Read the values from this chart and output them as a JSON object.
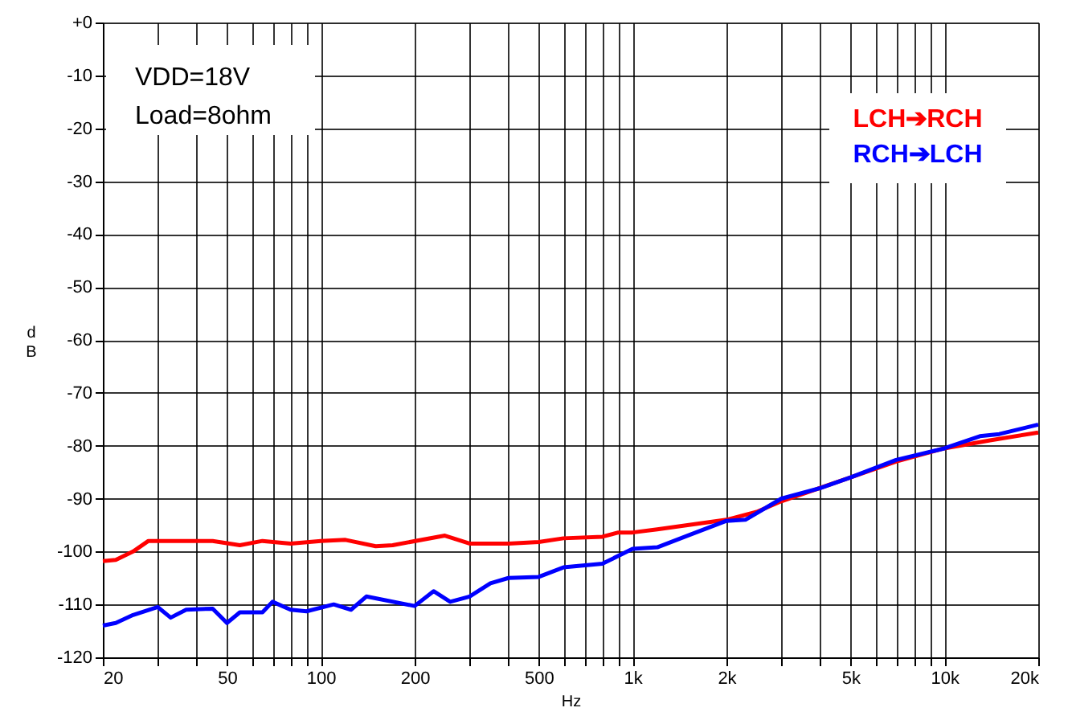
{
  "chart_data": {
    "type": "line",
    "xlabel": "Hz",
    "ylabel": "dB",
    "annotations": [
      "VDD=18V",
      "Load=8ohm"
    ],
    "log": "x",
    "grid": true,
    "legend": "top right",
    "line_style": "solid",
    "marker": "none",
    "xlim": [
      20,
      20000
    ],
    "xticks": [
      20,
      {
        "value": 30,
        "label": null
      },
      {
        "value": 40,
        "label": null
      },
      50,
      {
        "value": 60,
        "label": null
      },
      {
        "value": 70,
        "label": null
      },
      {
        "value": 80,
        "label": null
      },
      {
        "value": 90,
        "label": null
      },
      100,
      200,
      {
        "value": 300,
        "label": null
      },
      {
        "value": 400,
        "label": null
      },
      500,
      {
        "value": 600,
        "label": null
      },
      {
        "value": 700,
        "label": null
      },
      {
        "value": 800,
        "label": null
      },
      {
        "value": 900,
        "label": null
      },
      {
        "value": 1000,
        "label": "1k"
      },
      {
        "value": 2000,
        "label": "2k"
      },
      {
        "value": 3000,
        "label": null
      },
      {
        "value": 4000,
        "label": null
      },
      {
        "value": 5000,
        "label": "5k"
      },
      {
        "value": 6000,
        "label": null
      },
      {
        "value": 7000,
        "label": null
      },
      {
        "value": 8000,
        "label": null
      },
      {
        "value": 9000,
        "label": null
      },
      {
        "value": 10000,
        "label": "10k"
      },
      {
        "value": 20000,
        "label": "20k"
      }
    ],
    "ylim": [
      -120,
      0
    ],
    "yticks": [
      -120,
      -110,
      -100,
      -90,
      -80,
      -70,
      -60,
      -50,
      -40,
      -30,
      -20,
      -10,
      {
        "value": 0,
        "label": "+0"
      }
    ],
    "series": [
      {
        "name": "LCH➔RCH",
        "color": "#ff0000",
        "x": [
          20,
          22,
          25,
          28,
          35,
          45,
          55,
          65,
          80,
          100,
          120,
          150,
          170,
          250,
          300,
          400,
          500,
          600,
          800,
          900,
          1000,
          1200,
          1500,
          2000,
          2500,
          3000,
          5000,
          7000,
          10000,
          14000,
          20000
        ],
        "values": [
          -101.8,
          -101.6,
          -100,
          -98,
          -98,
          -98,
          -98.8,
          -98,
          -98.5,
          -98,
          -97.8,
          -99,
          -98.8,
          -97,
          -98.5,
          -98.5,
          -98.2,
          -97.5,
          -97.2,
          -96.4,
          -96.4,
          -95.8,
          -95,
          -94,
          -92.5,
          -90.5,
          -86,
          -83,
          -80.5,
          -79,
          -77.5
        ]
      },
      {
        "name": "RCH➔LCH",
        "color": "#0000ff",
        "x": [
          20,
          22,
          25,
          30,
          33,
          37,
          45,
          50,
          55,
          65,
          70,
          80,
          90,
          110,
          125,
          140,
          200,
          230,
          260,
          300,
          350,
          400,
          500,
          600,
          800,
          1000,
          1200,
          1500,
          2000,
          2300,
          3000,
          4000,
          5000,
          7000,
          10000,
          13000,
          15000,
          20000
        ],
        "values": [
          -114,
          -113.5,
          -112,
          -110.5,
          -112.5,
          -111,
          -110.8,
          -113.5,
          -111.5,
          -111.5,
          -109.5,
          -111,
          -111.3,
          -110,
          -111,
          -108.5,
          -110.3,
          -107.5,
          -109.5,
          -108.5,
          -106,
          -105,
          -104.8,
          -103,
          -102.3,
          -99.5,
          -99.2,
          -97,
          -94.2,
          -94,
          -90,
          -88,
          -86,
          -82.7,
          -80.5,
          -78.2,
          -77.8,
          -76
        ]
      }
    ]
  }
}
